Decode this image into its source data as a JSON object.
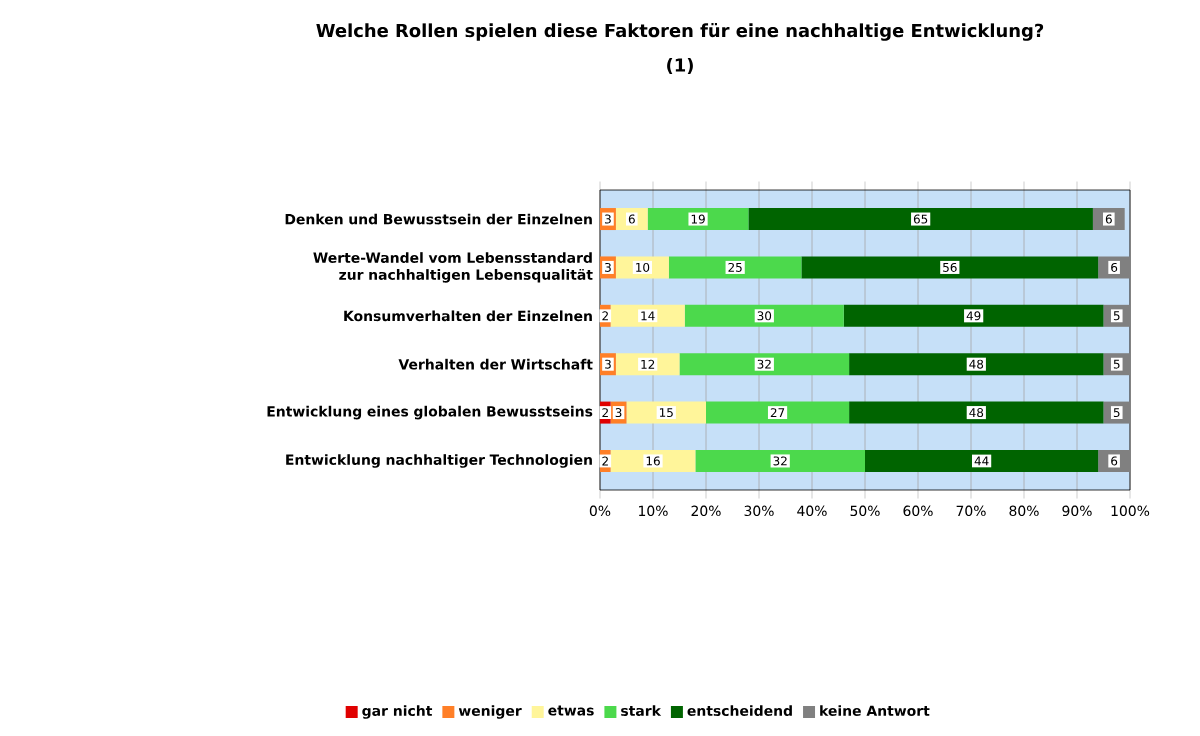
{
  "chart_data": {
    "type": "bar",
    "orientation": "horizontal",
    "stacked": true,
    "title": "Welche Rollen spielen diese Faktoren für eine nachhaltige Entwicklung?",
    "subtitle": "(1)",
    "categories": [
      "Denken und Bewusstsein der Einzelnen",
      "Werte-Wandel vom Lebensstandard zur nachhaltigen Lebensqualität",
      "Konsumverhalten der Einzelnen",
      "Verhalten der Wirtschaft",
      "Entwicklung eines globalen Bewusstseins",
      "Entwicklung nachhaltiger Technologien"
    ],
    "series": [
      {
        "name": "gar nicht",
        "color": "#e00000",
        "values": [
          null,
          null,
          null,
          null,
          2,
          null
        ]
      },
      {
        "name": "weniger",
        "color": "#ff7f27",
        "values": [
          3,
          3,
          2,
          3,
          3,
          2
        ]
      },
      {
        "name": "etwas",
        "color": "#fff59a",
        "values": [
          6,
          10,
          14,
          12,
          15,
          16
        ]
      },
      {
        "name": "stark",
        "color": "#4cd94c",
        "values": [
          19,
          25,
          30,
          32,
          27,
          32
        ]
      },
      {
        "name": "entscheidend",
        "color": "#006400",
        "values": [
          65,
          56,
          49,
          48,
          48,
          44
        ]
      },
      {
        "name": "keine Antwort",
        "color": "#808080",
        "values": [
          6,
          6,
          5,
          5,
          5,
          6
        ]
      }
    ],
    "xlim": [
      0,
      100
    ],
    "xticks": [
      {
        "value": 0,
        "label": "0%"
      },
      {
        "value": 10,
        "label": "10%"
      },
      {
        "value": 20,
        "label": "20%"
      },
      {
        "value": 30,
        "label": "30%"
      },
      {
        "value": 40,
        "label": "40%"
      },
      {
        "value": 50,
        "label": "50%"
      },
      {
        "value": 60,
        "label": "60%"
      },
      {
        "value": 70,
        "label": "70%"
      },
      {
        "value": 80,
        "label": "80%"
      },
      {
        "value": 90,
        "label": "90%"
      },
      {
        "value": 100,
        "label": "100%"
      }
    ],
    "grid": "x",
    "legend": "bottom",
    "data_labels": true
  }
}
